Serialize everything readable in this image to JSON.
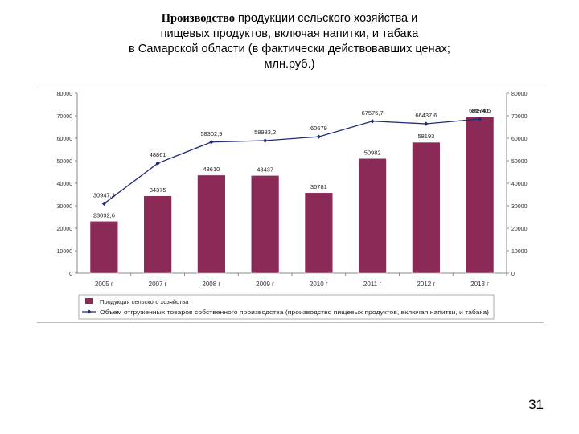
{
  "title": {
    "part1": "Производство",
    "part2": " продукции сельского хозяйства и",
    "line2": "пищевых продуктов, включая напитки, и табака",
    "line3": "в Самарской области (в фактически действовавших ценах;",
    "line4": "млн.руб.)"
  },
  "page_number": "31",
  "chart_data": {
    "type": "bar",
    "categories": [
      "2005 г",
      "2007 г",
      "2008 г",
      "2009 г",
      "2010 г",
      "2011 г",
      "2012 г",
      "2013 г"
    ],
    "ylim": [
      0,
      80000
    ],
    "yticks": [
      0,
      10000,
      20000,
      30000,
      40000,
      50000,
      60000,
      70000,
      80000
    ],
    "grid": false,
    "legend_position": "bottom",
    "series": [
      {
        "name": "Продукция сельского хозяйства",
        "kind": "bar",
        "color": "#8b2a57",
        "values": [
          23092.6,
          34375,
          43610,
          43437,
          35781,
          50982,
          58193,
          69530
        ],
        "labels": [
          "23092,6",
          "34375",
          "43610",
          "43437",
          "35781",
          "50982",
          "58193",
          "69530"
        ]
      },
      {
        "name": "Объем отгруженных товаров собственного производства (производство пищевых продуктов, включая напитки, и табака)",
        "kind": "line",
        "color": "#1f2a78",
        "values": [
          30947.3,
          48861,
          58302.9,
          58933.2,
          60679,
          67575.7,
          66437.6,
          68574.5
        ],
        "labels": [
          "30947,3",
          "48861",
          "58302,9",
          "58933,2",
          "60679",
          "67575,7",
          "66437,6",
          "68574,5"
        ]
      }
    ]
  }
}
